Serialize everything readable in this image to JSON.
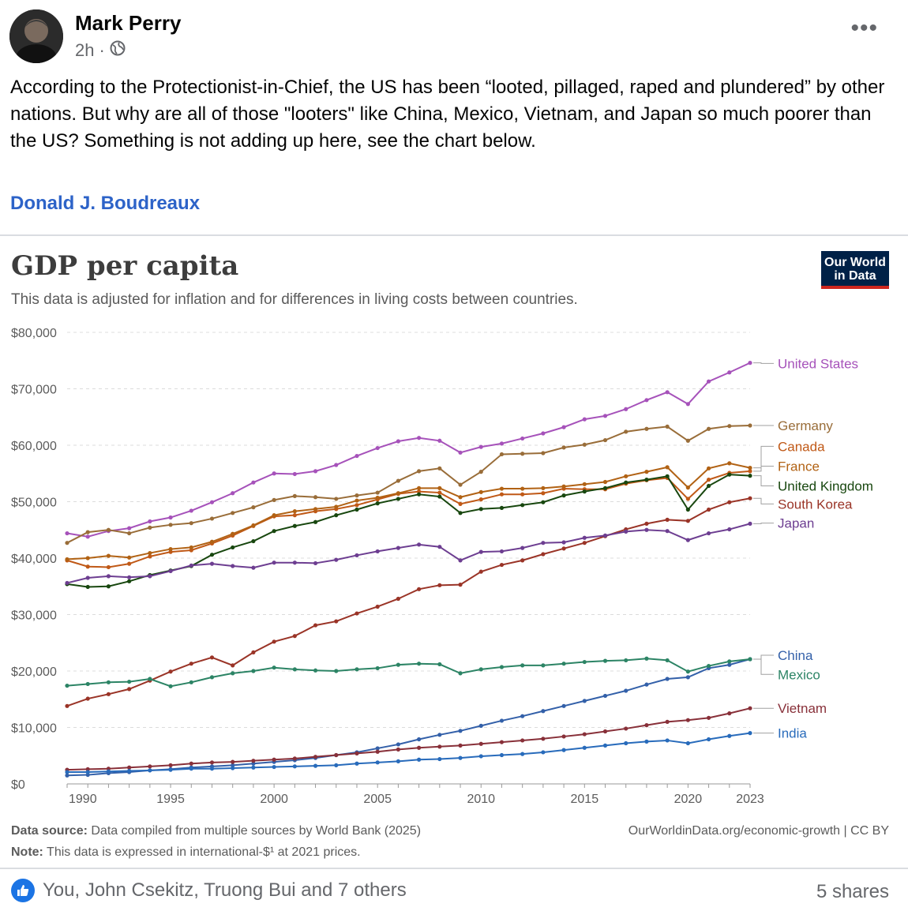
{
  "post": {
    "author": "Mark Perry",
    "time": "2h",
    "separator": "·",
    "text": "According to the Protectionist-in-Chief, the US has been “looted, pillaged, raped and plundered” by other nations. But why are all of those \"looters\" like China, Mexico, Vietnam, and Japan so much poorer than the US? Something is not adding up here, see the chart below.",
    "mention": "Donald J. Boudreaux",
    "more_icon": "more-icon"
  },
  "chart": {
    "title": "GDP per capita",
    "subtitle": "This data is adjusted for inflation and for differences in living costs between countries.",
    "logo_line1": "Our World",
    "logo_line2": "in Data",
    "source_label": "Data source:",
    "source_text": "Data compiled from multiple sources by World Bank (2025)",
    "note_label": "Note:",
    "note_text": "This data is expressed in international-$¹ at 2021 prices.",
    "license": "OurWorldinData.org/economic-growth | CC BY"
  },
  "chart_data": {
    "type": "line",
    "title": "GDP per capita",
    "ylim": [
      0,
      80000
    ],
    "xlim": [
      1990,
      2023
    ],
    "y_ticks": [
      0,
      10000,
      20000,
      30000,
      40000,
      50000,
      60000,
      70000,
      80000
    ],
    "y_tick_labels": [
      "$0",
      "$10,000",
      "$20,000",
      "$30,000",
      "$40,000",
      "$50,000",
      "$60,000",
      "$70,000",
      "$80,000"
    ],
    "x_ticks": [
      1990,
      1995,
      2000,
      2005,
      2010,
      2015,
      2020,
      2023
    ],
    "x_tick_labels": [
      "1990",
      "1995",
      "2000",
      "2005",
      "2010",
      "2015",
      "2020",
      "2023"
    ],
    "grid": true,
    "legend": "right",
    "years": [
      1990,
      1991,
      1992,
      1993,
      1994,
      1995,
      1996,
      1997,
      1998,
      1999,
      2000,
      2001,
      2002,
      2003,
      2004,
      2005,
      2006,
      2007,
      2008,
      2009,
      2010,
      2011,
      2012,
      2013,
      2014,
      2015,
      2016,
      2017,
      2018,
      2019,
      2020,
      2021,
      2022,
      2023
    ],
    "series": [
      {
        "name": "United States",
        "color": "#a652ba",
        "label_y": 74500,
        "values": [
          44400,
          43800,
          44800,
          45300,
          46500,
          47200,
          48400,
          49900,
          51500,
          53400,
          55000,
          54900,
          55400,
          56500,
          58100,
          59500,
          60700,
          61300,
          60800,
          58700,
          59700,
          60300,
          61200,
          62100,
          63200,
          64600,
          65200,
          66400,
          68000,
          69400,
          67300,
          71300,
          72900,
          74600
        ]
      },
      {
        "name": "Germany",
        "color": "#996d39",
        "label_y": 63500,
        "values": [
          42700,
          44600,
          45000,
          44400,
          45400,
          45900,
          46200,
          47000,
          48000,
          49000,
          50300,
          51000,
          50800,
          50500,
          51100,
          51600,
          53700,
          55400,
          55900,
          53000,
          55300,
          58400,
          58500,
          58600,
          59600,
          60100,
          60900,
          62400,
          62900,
          63300,
          60800,
          62900,
          63400,
          63500
        ]
      },
      {
        "name": "Canada",
        "color": "#c05917",
        "label_y": 59800,
        "values": [
          39600,
          38500,
          38400,
          39000,
          40300,
          41100,
          41400,
          42600,
          44000,
          45700,
          47400,
          47600,
          48300,
          48700,
          49400,
          50400,
          51400,
          51800,
          51600,
          49600,
          50400,
          51300,
          51300,
          51500,
          52300,
          52200,
          52200,
          53200,
          53800,
          54200,
          50500,
          53900,
          55100,
          55400
        ]
      },
      {
        "name": "France",
        "color": "#b16214",
        "label_y": 56300,
        "values": [
          39800,
          40000,
          40400,
          40100,
          40900,
          41600,
          41900,
          42900,
          44300,
          45800,
          47600,
          48300,
          48700,
          49100,
          50200,
          50700,
          51500,
          52400,
          52400,
          50800,
          51700,
          52300,
          52300,
          52400,
          52700,
          53100,
          53500,
          54500,
          55300,
          56100,
          52500,
          55900,
          56800,
          56000
        ]
      },
      {
        "name": "United Kingdom",
        "color": "#18470f",
        "label_y": 52800,
        "values": [
          35400,
          34900,
          35000,
          35900,
          37000,
          37800,
          38600,
          40600,
          41900,
          43000,
          44800,
          45700,
          46400,
          47600,
          48600,
          49700,
          50500,
          51300,
          50900,
          48000,
          48700,
          48900,
          49400,
          49900,
          51100,
          51800,
          52400,
          53400,
          53900,
          54500,
          48600,
          52800,
          54800,
          54600
        ]
      },
      {
        "name": "South Korea",
        "color": "#9a3427",
        "label_y": 49600,
        "values": [
          13800,
          15100,
          15900,
          16800,
          18300,
          19900,
          21300,
          22400,
          21000,
          23300,
          25200,
          26200,
          28100,
          28800,
          30200,
          31400,
          32800,
          34500,
          35200,
          35300,
          37600,
          38800,
          39600,
          40700,
          41700,
          42700,
          43900,
          45100,
          46100,
          46800,
          46600,
          48600,
          49900,
          50600
        ]
      },
      {
        "name": "Japan",
        "color": "#6d3e91",
        "label_y": 46200,
        "values": [
          35600,
          36500,
          36800,
          36600,
          36800,
          37700,
          38700,
          39000,
          38600,
          38300,
          39200,
          39200,
          39100,
          39700,
          40500,
          41200,
          41800,
          42400,
          42000,
          39600,
          41100,
          41200,
          41800,
          42700,
          42800,
          43600,
          44000,
          44700,
          45000,
          44800,
          43200,
          44400,
          45100,
          46100
        ]
      },
      {
        "name": "China",
        "color": "#3360a9",
        "label_y": 22800,
        "values": [
          1500,
          1600,
          1900,
          2100,
          2400,
          2600,
          2900,
          3100,
          3300,
          3600,
          3900,
          4200,
          4600,
          5100,
          5600,
          6300,
          7000,
          7900,
          8700,
          9400,
          10300,
          11200,
          12000,
          12900,
          13800,
          14700,
          15600,
          16500,
          17600,
          18600,
          18900,
          20500,
          21100,
          22100
        ]
      },
      {
        "name": "Mexico",
        "color": "#2c8465",
        "label_y": 19400,
        "values": [
          17400,
          17700,
          18000,
          18100,
          18600,
          17300,
          18000,
          18900,
          19600,
          20000,
          20600,
          20300,
          20100,
          20000,
          20300,
          20500,
          21100,
          21300,
          21200,
          19600,
          20300,
          20700,
          21000,
          21000,
          21300,
          21600,
          21800,
          21900,
          22200,
          21900,
          19900,
          20900,
          21700,
          22100
        ]
      },
      {
        "name": "Vietnam",
        "color": "#883039",
        "label_y": 13400,
        "values": [
          2500,
          2600,
          2700,
          2900,
          3100,
          3300,
          3600,
          3800,
          3900,
          4100,
          4300,
          4500,
          4800,
          5100,
          5400,
          5700,
          6100,
          6400,
          6600,
          6800,
          7100,
          7400,
          7700,
          8000,
          8400,
          8800,
          9300,
          9800,
          10400,
          11000,
          11300,
          11700,
          12500,
          13400
        ]
      },
      {
        "name": "India",
        "color": "#286bbb",
        "label_y": 9000,
        "values": [
          2100,
          2100,
          2200,
          2300,
          2400,
          2500,
          2700,
          2700,
          2800,
          2900,
          3000,
          3100,
          3200,
          3300,
          3600,
          3800,
          4000,
          4300,
          4400,
          4600,
          4900,
          5100,
          5300,
          5600,
          6000,
          6400,
          6800,
          7200,
          7500,
          7700,
          7200,
          7900,
          8500,
          9000
        ]
      }
    ]
  },
  "reactions": {
    "like_icon": "thumbs-up-icon",
    "text": "You, John Csekitz, Truong Bui and 7 others",
    "shares": "5 shares"
  }
}
